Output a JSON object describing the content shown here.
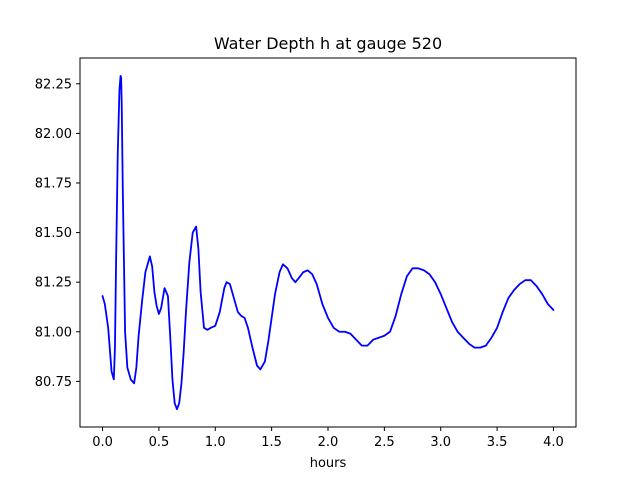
{
  "chart_data": {
    "type": "line",
    "title": "Water Depth h at gauge 520",
    "xlabel": "hours",
    "ylabel": "",
    "xlim": [
      -0.2,
      4.2
    ],
    "ylim": [
      80.52,
      82.38
    ],
    "xticks": [
      0.0,
      0.5,
      1.0,
      1.5,
      2.0,
      2.5,
      3.0,
      3.5,
      4.0
    ],
    "xtick_labels": [
      "0.0",
      "0.5",
      "1.0",
      "1.5",
      "2.0",
      "2.5",
      "3.0",
      "3.5",
      "4.0"
    ],
    "yticks": [
      80.75,
      81.0,
      81.25,
      81.5,
      81.75,
      82.0,
      82.25
    ],
    "ytick_labels": [
      "80.75",
      "81.00",
      "81.25",
      "81.50",
      "81.75",
      "82.00",
      "82.25"
    ],
    "grid": false,
    "legend": "none",
    "series": [
      {
        "color": "#0000ff",
        "x": [
          0.0,
          0.02,
          0.05,
          0.08,
          0.1,
          0.11,
          0.12,
          0.135,
          0.15,
          0.16,
          0.165,
          0.17,
          0.18,
          0.2,
          0.22,
          0.25,
          0.28,
          0.3,
          0.32,
          0.35,
          0.38,
          0.42,
          0.44,
          0.46,
          0.48,
          0.5,
          0.52,
          0.55,
          0.58,
          0.6,
          0.62,
          0.64,
          0.66,
          0.68,
          0.7,
          0.72,
          0.74,
          0.77,
          0.8,
          0.83,
          0.85,
          0.87,
          0.9,
          0.93,
          0.96,
          1.0,
          1.04,
          1.08,
          1.1,
          1.13,
          1.16,
          1.2,
          1.23,
          1.26,
          1.29,
          1.33,
          1.37,
          1.4,
          1.44,
          1.47,
          1.5,
          1.53,
          1.57,
          1.6,
          1.64,
          1.68,
          1.71,
          1.74,
          1.78,
          1.82,
          1.86,
          1.9,
          1.95,
          2.0,
          2.05,
          2.1,
          2.15,
          2.2,
          2.25,
          2.3,
          2.35,
          2.4,
          2.45,
          2.5,
          2.55,
          2.6,
          2.65,
          2.7,
          2.75,
          2.8,
          2.85,
          2.9,
          2.95,
          3.0,
          3.05,
          3.1,
          3.15,
          3.2,
          3.25,
          3.3,
          3.35,
          3.4,
          3.45,
          3.5,
          3.55,
          3.6,
          3.65,
          3.7,
          3.75,
          3.8,
          3.85,
          3.9,
          3.95,
          4.0
        ],
        "y": [
          81.18,
          81.14,
          81.02,
          80.8,
          80.76,
          80.92,
          81.35,
          81.9,
          82.22,
          82.29,
          82.28,
          82.15,
          81.7,
          81.0,
          80.82,
          80.76,
          80.74,
          80.82,
          80.98,
          81.15,
          81.3,
          81.38,
          81.33,
          81.2,
          81.13,
          81.09,
          81.12,
          81.22,
          81.18,
          80.98,
          80.76,
          80.64,
          80.61,
          80.64,
          80.74,
          80.9,
          81.1,
          81.35,
          81.5,
          81.53,
          81.42,
          81.2,
          81.02,
          81.01,
          81.02,
          81.03,
          81.1,
          81.22,
          81.25,
          81.24,
          81.18,
          81.1,
          81.08,
          81.07,
          81.02,
          80.92,
          80.83,
          80.81,
          80.85,
          80.95,
          81.07,
          81.19,
          81.3,
          81.34,
          81.32,
          81.27,
          81.25,
          81.27,
          81.3,
          81.31,
          81.29,
          81.24,
          81.14,
          81.07,
          81.02,
          81.0,
          81.0,
          80.99,
          80.96,
          80.93,
          80.93,
          80.96,
          80.97,
          80.98,
          81.0,
          81.08,
          81.19,
          81.28,
          81.32,
          81.32,
          81.31,
          81.29,
          81.25,
          81.19,
          81.12,
          81.05,
          81.0,
          80.97,
          80.94,
          80.92,
          80.92,
          80.93,
          80.97,
          81.02,
          81.1,
          81.17,
          81.21,
          81.24,
          81.26,
          81.26,
          81.23,
          81.19,
          81.14,
          81.11
        ]
      }
    ]
  }
}
